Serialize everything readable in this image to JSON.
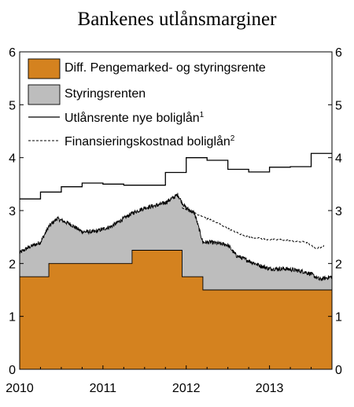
{
  "chart_data": {
    "type": "area",
    "title": "Bankenes utlånsmarginer",
    "xlabel": "",
    "ylabel": "",
    "xlim": [
      2010.0,
      2013.75
    ],
    "ylim": [
      0,
      6
    ],
    "y_ticks": [
      "0",
      "1",
      "2",
      "3",
      "4",
      "5",
      "6"
    ],
    "x_ticks": [
      {
        "value": 2010,
        "label": "2010"
      },
      {
        "value": 2011,
        "label": "2011"
      },
      {
        "value": 2012,
        "label": "2012"
      },
      {
        "value": 2013,
        "label": "2013"
      }
    ],
    "grid": false,
    "legend_position": "top-left",
    "colors": {
      "diff_fill": "#d4821f",
      "styring_fill": "#bdbdbd",
      "line": "#000000",
      "background": "#ffffff"
    },
    "legend": [
      {
        "label": "Diff. Pengemarked- og styringsrente",
        "sup": "",
        "style": "orange-fill"
      },
      {
        "label": "Styringsrenten",
        "sup": "",
        "style": "grey-fill"
      },
      {
        "label": "Utlånsrente nye boliglån",
        "sup": "1",
        "style": "solid-line"
      },
      {
        "label": "Finansieringskostnad boliglån",
        "sup": "2",
        "style": "dashed-line"
      }
    ],
    "series": [
      {
        "name": "Diff. Pengemarked- og styringsrente",
        "type": "step-area",
        "x": [
          2010.0,
          2010.35,
          2010.35,
          2011.35,
          2011.35,
          2011.95,
          2011.95,
          2012.2,
          2012.2,
          2013.75
        ],
        "y": [
          1.75,
          1.75,
          2.0,
          2.0,
          2.25,
          2.25,
          1.75,
          1.75,
          1.5,
          1.5
        ]
      },
      {
        "name": "Styringsrenten",
        "type": "area",
        "x": [
          2010.0,
          2010.1,
          2010.25,
          2010.35,
          2010.45,
          2010.6,
          2010.75,
          2010.9,
          2011.0,
          2011.1,
          2011.2,
          2011.35,
          2011.5,
          2011.65,
          2011.75,
          2011.85,
          2011.9,
          2011.95,
          2012.0,
          2012.1,
          2012.2,
          2012.3,
          2012.5,
          2012.6,
          2012.75,
          2012.9,
          2013.0,
          2013.2,
          2013.4,
          2013.5,
          2013.6,
          2013.75
        ],
        "y": [
          2.2,
          2.3,
          2.4,
          2.7,
          2.85,
          2.75,
          2.6,
          2.6,
          2.65,
          2.7,
          2.8,
          2.95,
          3.05,
          3.1,
          3.15,
          3.25,
          3.3,
          3.15,
          3.05,
          2.95,
          2.4,
          2.4,
          2.35,
          2.15,
          2.05,
          1.95,
          1.9,
          1.9,
          1.85,
          1.8,
          1.7,
          1.75
        ]
      },
      {
        "name": "Utlånsrente nye boliglån",
        "type": "step-line",
        "x": [
          2010.0,
          2010.25,
          2010.25,
          2010.5,
          2010.5,
          2010.75,
          2010.75,
          2011.0,
          2011.0,
          2011.25,
          2011.25,
          2011.75,
          2011.75,
          2012.0,
          2012.0,
          2012.25,
          2012.25,
          2012.5,
          2012.5,
          2012.75,
          2012.75,
          2013.0,
          2013.0,
          2013.25,
          2013.25,
          2013.5,
          2013.5,
          2013.75
        ],
        "y": [
          3.22,
          3.22,
          3.35,
          3.35,
          3.45,
          3.45,
          3.52,
          3.52,
          3.5,
          3.5,
          3.48,
          3.48,
          3.72,
          3.72,
          4.0,
          4.0,
          3.95,
          3.95,
          3.78,
          3.78,
          3.73,
          3.73,
          3.82,
          3.82,
          3.83,
          3.83,
          4.08,
          4.08
        ]
      },
      {
        "name": "Finansieringskostnad boliglån",
        "type": "dashed-line",
        "x": [
          2011.95,
          2012.1,
          2012.25,
          2012.4,
          2012.55,
          2012.7,
          2012.85,
          2013.0,
          2013.15,
          2013.3,
          2013.45,
          2013.55,
          2013.65
        ],
        "y": [
          3.05,
          2.95,
          2.85,
          2.75,
          2.62,
          2.52,
          2.48,
          2.45,
          2.45,
          2.42,
          2.4,
          2.28,
          2.32
        ]
      }
    ]
  }
}
